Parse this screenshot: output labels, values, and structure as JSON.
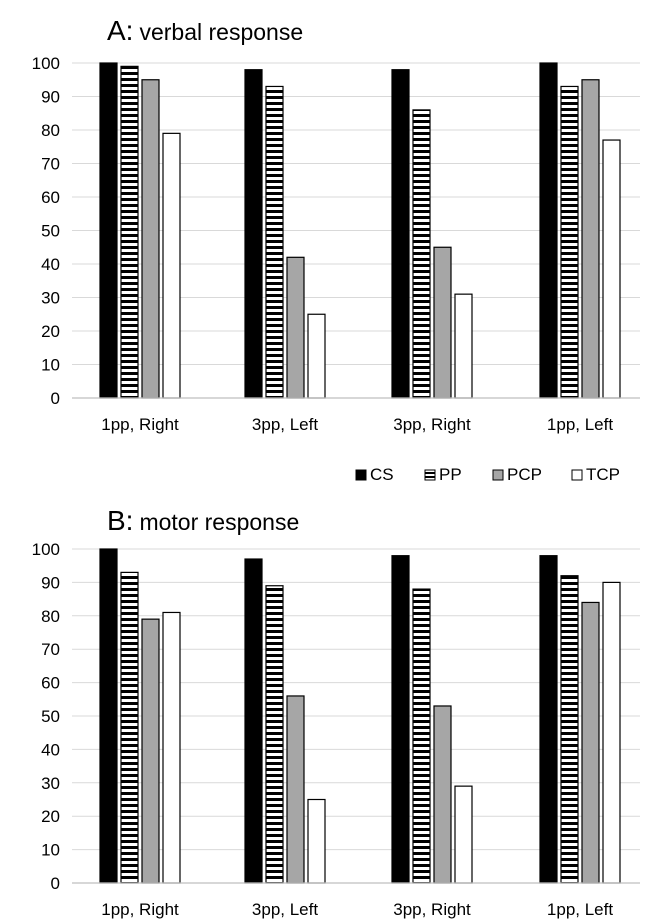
{
  "chart_data": [
    {
      "type": "bar",
      "title_prefix": "A:",
      "title": "verbal response",
      "categories": [
        "1pp, Right",
        "3pp, Left",
        "3pp, Right",
        "1pp, Left"
      ],
      "series": [
        {
          "name": "CS",
          "values": [
            100,
            98,
            98,
            100
          ]
        },
        {
          "name": "PP",
          "values": [
            99,
            93,
            86,
            93
          ]
        },
        {
          "name": "PCP",
          "values": [
            95,
            42,
            45,
            95
          ]
        },
        {
          "name": "TCP",
          "values": [
            79,
            25,
            31,
            77
          ]
        }
      ],
      "ylim": [
        0,
        100
      ],
      "yticks": [
        0,
        10,
        20,
        30,
        40,
        50,
        60,
        70,
        80,
        90,
        100
      ],
      "grid": true
    },
    {
      "type": "bar",
      "title_prefix": "B:",
      "title": "motor response",
      "categories": [
        "1pp, Right",
        "3pp, Left",
        "3pp, Right",
        "1pp, Left"
      ],
      "series": [
        {
          "name": "CS",
          "values": [
            100,
            97,
            98,
            98
          ]
        },
        {
          "name": "PP",
          "values": [
            93,
            89,
            88,
            92
          ]
        },
        {
          "name": "PCP",
          "values": [
            79,
            56,
            53,
            84
          ]
        },
        {
          "name": "TCP",
          "values": [
            81,
            25,
            29,
            90
          ]
        }
      ],
      "ylim": [
        0,
        100
      ],
      "yticks": [
        0,
        10,
        20,
        30,
        40,
        50,
        60,
        70,
        80,
        90,
        100
      ],
      "grid": true
    }
  ],
  "legend": {
    "placement": "between panels, right",
    "items": [
      "CS",
      "PP",
      "PCP",
      "TCP"
    ]
  },
  "series_styles": {
    "CS": {
      "fill": "#000000",
      "pattern": "solid"
    },
    "PP": {
      "fill": "#ffffff",
      "pattern": "horizontal-stripes"
    },
    "PCP": {
      "fill": "#a6a6a6",
      "pattern": "solid"
    },
    "TCP": {
      "fill": "#ffffff",
      "pattern": "solid"
    }
  }
}
